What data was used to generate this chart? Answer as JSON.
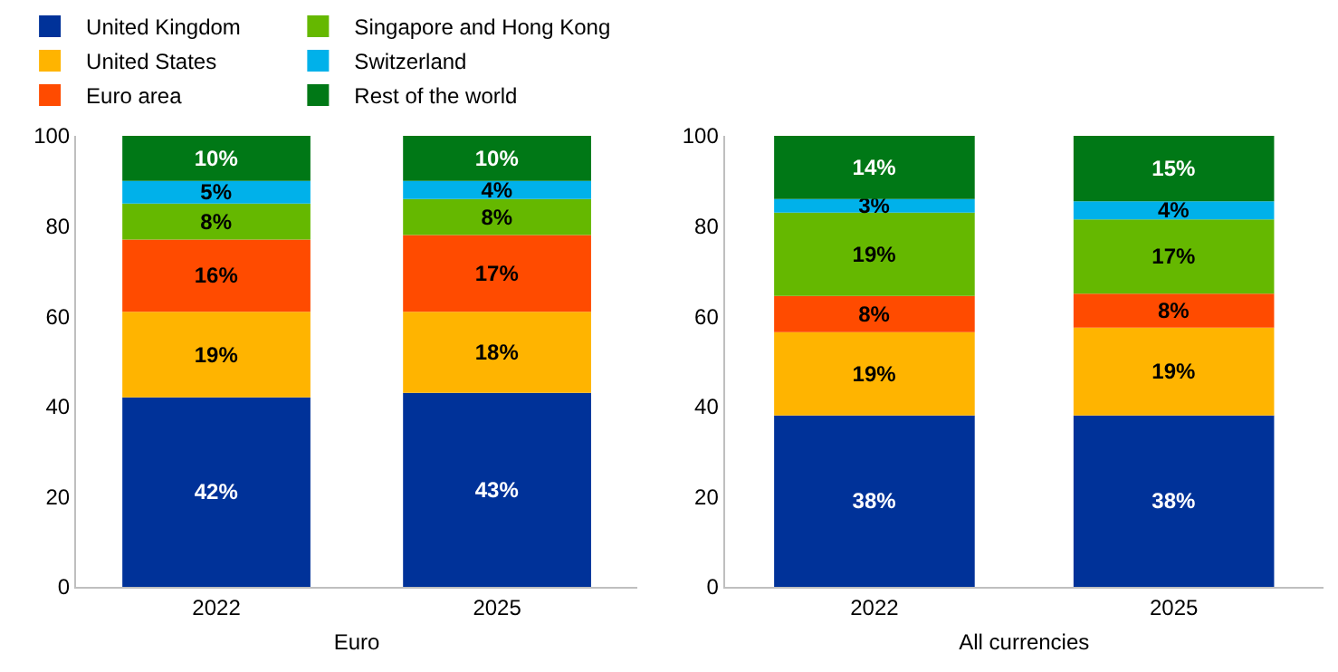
{
  "chart_data": [
    {
      "type": "bar",
      "stacked": true,
      "xlabel": "Euro",
      "categories": [
        "2022",
        "2025"
      ],
      "ylim": [
        0,
        100
      ],
      "yticks": [
        0,
        20,
        40,
        60,
        80,
        100
      ],
      "grid": false,
      "legend": "top left",
      "series": [
        {
          "name": "United Kingdom",
          "color": "#003299",
          "values": [
            42,
            43
          ],
          "value_labels": [
            "42%",
            "43%"
          ]
        },
        {
          "name": "United States",
          "color": "#ffb400",
          "values": [
            19,
            18
          ],
          "value_labels": [
            "19%",
            "18%"
          ]
        },
        {
          "name": "Euro area",
          "color": "#ff4b00",
          "values": [
            16,
            17
          ],
          "value_labels": [
            "16%",
            "17%"
          ]
        },
        {
          "name": "Singapore and Hong Kong",
          "color": "#65b800",
          "values": [
            8,
            8
          ],
          "value_labels": [
            "8%",
            "8%"
          ]
        },
        {
          "name": "Switzerland",
          "color": "#00b1ea",
          "values": [
            5,
            4
          ],
          "value_labels": [
            "5%",
            "4%"
          ]
        },
        {
          "name": "Rest of the world",
          "color": "#007816",
          "values": [
            10,
            10
          ],
          "value_labels": [
            "10%",
            "10%"
          ]
        }
      ]
    },
    {
      "type": "bar",
      "stacked": true,
      "xlabel": "All currencies",
      "categories": [
        "2022",
        "2025"
      ],
      "ylim": [
        0,
        100
      ],
      "yticks": [
        0,
        20,
        40,
        60,
        80,
        100
      ],
      "grid": false,
      "series": [
        {
          "color": "#003299",
          "values": [
            38,
            38
          ],
          "value_labels": [
            "38%",
            "38%"
          ]
        },
        {
          "color": "#ffb400",
          "values": [
            18.5,
            19.5
          ],
          "value_labels": [
            "19%",
            "19%"
          ]
        },
        {
          "color": "#ff4b00",
          "values": [
            8,
            7.5
          ],
          "value_labels": [
            "8%",
            "8%"
          ]
        },
        {
          "color": "#65b800",
          "values": [
            18.5,
            16.5
          ],
          "value_labels": [
            "19%",
            "17%"
          ]
        },
        {
          "color": "#00b1ea",
          "values": [
            3,
            4
          ],
          "value_labels": [
            "3%",
            "4%"
          ]
        },
        {
          "color": "#007816",
          "values": [
            14,
            14.5
          ],
          "value_labels": [
            "14%",
            "15%"
          ]
        }
      ]
    }
  ]
}
